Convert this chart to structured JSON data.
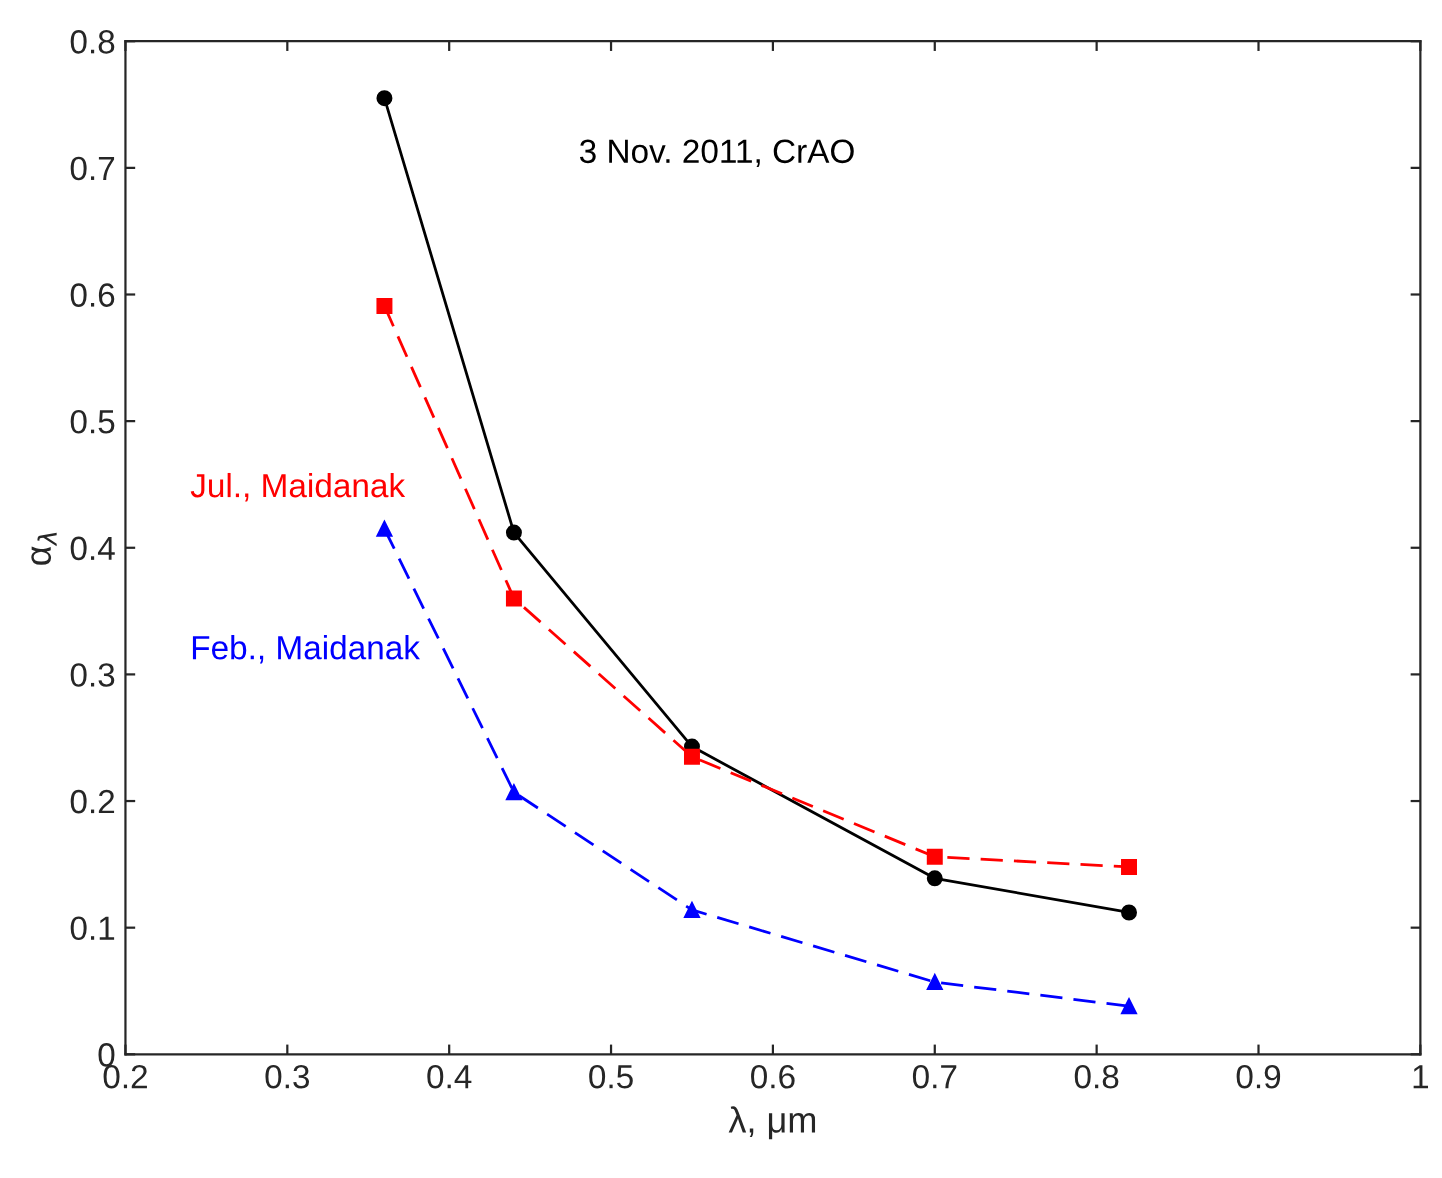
{
  "chart_data": {
    "type": "line",
    "xlabel": "λ, μm",
    "ylabel": "α$_{λ}$",
    "x": [
      0.36,
      0.44,
      0.55,
      0.7,
      0.82
    ],
    "series": [
      {
        "name": "3 Nov. 2011, CrAO",
        "color": "#000000",
        "values": [
          0.755,
          0.412,
          0.243,
          0.139,
          0.112
        ],
        "marker": "circle",
        "line_style": "solid"
      },
      {
        "name": "Jul., Maidanak",
        "color": "#ff0000",
        "values": [
          0.591,
          0.36,
          0.235,
          0.156,
          0.148
        ],
        "marker": "square",
        "line_style": "dashed"
      },
      {
        "name": "Feb., Maidanak",
        "color": "#0000ff",
        "values": [
          0.415,
          0.207,
          0.114,
          0.057,
          0.038
        ],
        "marker": "triangle",
        "line_style": "dashed"
      }
    ],
    "xlim": [
      0.2,
      1.0
    ],
    "xticks": [
      0.2,
      0.3,
      0.4,
      0.5,
      0.6,
      0.7,
      0.8,
      0.9,
      1
    ],
    "ylim": [
      0,
      0.8
    ],
    "yticks": [
      0,
      0.1,
      0.2,
      0.3,
      0.4,
      0.5,
      0.6,
      0.7,
      0.8
    ],
    "grid": false,
    "legend": false
  }
}
